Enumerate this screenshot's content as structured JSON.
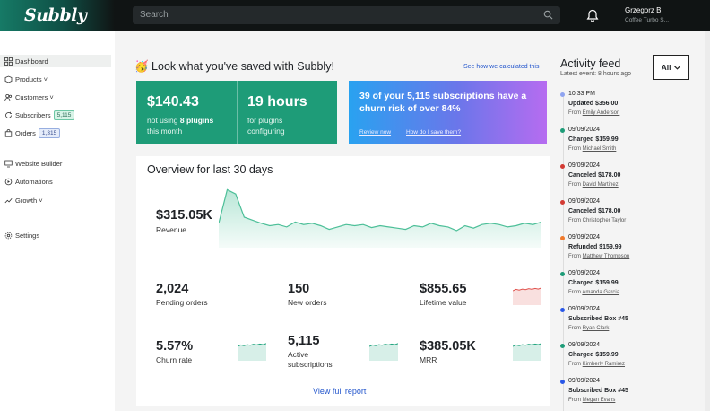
{
  "brand": {
    "logo": "Subbly"
  },
  "search": {
    "placeholder": "Search"
  },
  "user": {
    "name": "Grzegorz B",
    "company": "Coffee Turbo S..."
  },
  "sidebar": {
    "items": [
      {
        "label": "Dashboard",
        "icon": "grid-icon"
      },
      {
        "label": "Products ˅",
        "icon": "box-icon"
      },
      {
        "label": "Customers ˅",
        "icon": "users-icon"
      },
      {
        "label": "Subscribers",
        "icon": "refresh-icon",
        "badge": "5,115"
      },
      {
        "label": "Orders",
        "icon": "bag-icon",
        "badge": "1,315"
      },
      {
        "label": "Website Builder",
        "icon": "monitor-icon"
      },
      {
        "label": "Automations",
        "icon": "automation-icon"
      },
      {
        "label": "Growth ˅",
        "icon": "growth-icon"
      },
      {
        "label": "Settings",
        "icon": "gear-icon"
      }
    ]
  },
  "savings": {
    "title": "🥳 Look what you've saved with Subbly!",
    "calc_link": "See how we calculated this",
    "amount": "$140.43",
    "amount_desc_pre": "not using ",
    "amount_desc_bold": "8 plugins",
    "amount_desc_post": "this month",
    "hours": "19 hours",
    "hours_desc_1": "for plugins",
    "hours_desc_2": "configuring",
    "churn_headline": "39 of your 5,115 subscriptions have a churn risk of over 84%",
    "review_link": "Review now",
    "save_link": "How do I save them?"
  },
  "overview": {
    "title": "Overview for last 30 days",
    "revenue_value": "$315.05K",
    "revenue_label": "Revenue",
    "revenue_trend": [
      40,
      95,
      88,
      50,
      45,
      40,
      36,
      38,
      34,
      42,
      38,
      40,
      36,
      30,
      34,
      38,
      36,
      38,
      33,
      36,
      34,
      32,
      30,
      36,
      34,
      40,
      36,
      34,
      28,
      36,
      32,
      38,
      40,
      38,
      34,
      36,
      40,
      38,
      42
    ],
    "metrics": [
      {
        "value": "2,024",
        "label": "Pending orders"
      },
      {
        "value": "150",
        "label": "New orders"
      },
      {
        "value": "$855.65",
        "label": "Lifetime value",
        "trend_color": "#e0524d"
      },
      {
        "value": "5.57%",
        "label": "Churn rate",
        "trend_color": "#22a57f"
      },
      {
        "value": "5,115",
        "label": "Active subscriptions",
        "trend_color": "#22a57f"
      },
      {
        "value": "$385.05K",
        "label": "MRR",
        "trend_color": "#22a57f"
      }
    ],
    "view_full": "View full report"
  },
  "activity": {
    "title": "Activity feed",
    "latest": "Latest event: 8 hours ago",
    "filter": "All",
    "events": [
      {
        "time": "10:33 PM",
        "action": "Updated $356.00",
        "from": "From ",
        "name": "Emily Anderson",
        "color": "#8fa4f0"
      },
      {
        "time": "09/09/2024",
        "action": "Charged $159.99",
        "from": "From ",
        "name": "Michael Smith",
        "color": "#1e9c78"
      },
      {
        "time": "09/09/2024",
        "action": "Canceled $178.00",
        "from": "From ",
        "name": "David Martinez",
        "color": "#d33b34"
      },
      {
        "time": "09/09/2024",
        "action": "Canceled $178.00",
        "from": "From ",
        "name": "Christopher Taylor",
        "color": "#d33b34"
      },
      {
        "time": "09/09/2024",
        "action": "Refunded $159.99",
        "from": "From ",
        "name": "Matthew Thompson",
        "color": "#f07a2c"
      },
      {
        "time": "09/09/2024",
        "action": "Charged $159.99",
        "from": "From ",
        "name": "Amanda Garcia",
        "color": "#1e9c78"
      },
      {
        "time": "09/09/2024",
        "action": "Subscribed Box #45",
        "from": "From ",
        "name": "Ryan Clark",
        "color": "#2a58e8"
      },
      {
        "time": "09/09/2024",
        "action": "Charged $159.99",
        "from": "From ",
        "name": "Kimberly Ramirez",
        "color": "#1e9c78"
      },
      {
        "time": "09/09/2024",
        "action": "Subscribed Box #45",
        "from": "From ",
        "name": "Megan Evans",
        "color": "#2a58e8"
      }
    ]
  }
}
